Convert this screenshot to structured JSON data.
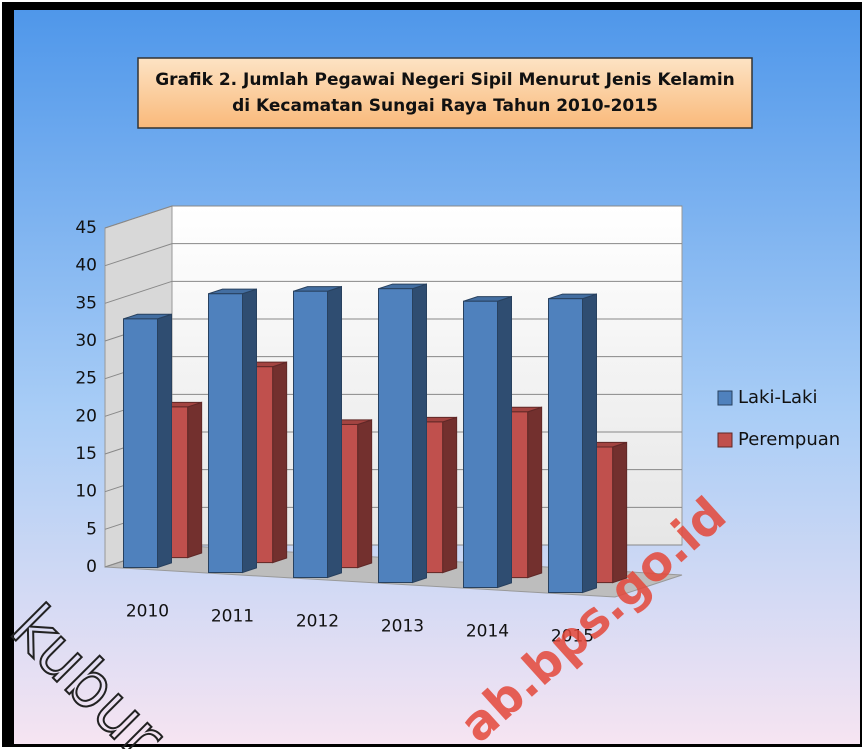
{
  "chart_data": {
    "type": "bar3d",
    "title": [
      "Grafik 2. Jumlah Pegawai Negeri Sipil Menurut Jenis Kelamin",
      "di Kecamatan Sungai Raya Tahun 2010-2015"
    ],
    "categories": [
      "2010",
      "2011",
      "2012",
      "2013",
      "2014",
      "2015"
    ],
    "series": [
      {
        "name": "Laki-Laki",
        "color": "#4f81bd",
        "values": [
          33,
          37,
          38,
          39,
          38,
          39
        ]
      },
      {
        "name": "Perempuan",
        "color": "#c0504d",
        "values": [
          20,
          26,
          19,
          20,
          22,
          18
        ]
      }
    ],
    "ylim": [
      0,
      45
    ],
    "yticks": [
      0,
      5,
      10,
      15,
      20,
      25,
      30,
      35,
      40,
      45
    ],
    "grid": true,
    "legend": "right",
    "watermark": [
      "kubur",
      "ab.bps.go.id"
    ]
  }
}
